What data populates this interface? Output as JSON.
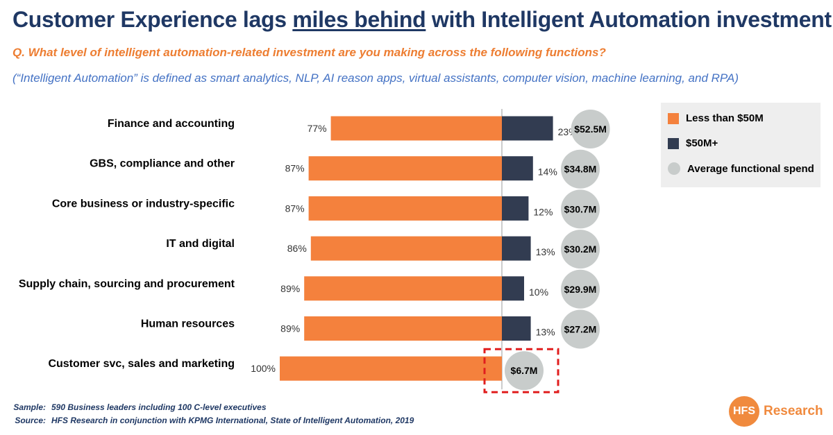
{
  "header": {
    "title_part1": "Customer Experience lags ",
    "title_underlined": "miles behind",
    "title_part2": " with Intelligent Automation investment",
    "question": "Q. What level of intelligent automation-related investment are you making across the following functions?",
    "definition": "(“Intelligent Automation”  is defined as smart analytics, NLP, AI reason apps, virtual assistants, computer vision, machine learning, and RPA)"
  },
  "legend": {
    "items": [
      {
        "label": "Less than $50M",
        "color": "#f4813d",
        "shape": "square"
      },
      {
        "label": "$50M+",
        "color": "#323c51",
        "shape": "square"
      },
      {
        "label": "Average functional spend",
        "color": "#c8cccb",
        "shape": "circle"
      }
    ]
  },
  "chart_data": {
    "type": "bar",
    "orientation": "horizontal-diverging",
    "categories": [
      "Finance and accounting",
      "GBS, compliance and other",
      "Core business or industry-specific",
      "IT and digital",
      "Supply chain, sourcing and procurement",
      "Human resources",
      "Customer svc, sales and marketing"
    ],
    "series": [
      {
        "name": "Less than $50M",
        "color": "#f4813d",
        "values": [
          77,
          87,
          87,
          86,
          89,
          89,
          100
        ],
        "labels": [
          "77%",
          "87%",
          "87%",
          "86%",
          "89%",
          "89%",
          "100%"
        ]
      },
      {
        "name": "$50M+",
        "color": "#323c51",
        "values": [
          23,
          14,
          12,
          13,
          10,
          13,
          0
        ],
        "labels": [
          "23%",
          "14%",
          "12%",
          "13%",
          "10%",
          "13%",
          ""
        ]
      }
    ],
    "average_spend": {
      "name": "Average functional spend",
      "color": "#c8cccb",
      "values": [
        52.5,
        34.8,
        30.7,
        30.2,
        29.9,
        27.2,
        6.7
      ],
      "labels": [
        "$52.5M",
        "$34.8M",
        "$30.7M",
        "$30.2M",
        "$29.9M",
        "$27.2M",
        "$6.7M"
      ]
    },
    "highlight_category": "Customer svc, sales and marketing",
    "highlight_color": "#e01e1e",
    "unit": "%"
  },
  "footer": {
    "sample_key": "Sample:",
    "sample_text": "590 Business leaders including 100 C-level executives",
    "source_key": "Source:",
    "source_text": "HFS Research in conjunction with KPMG International, State of Intelligent Automation, 2019"
  },
  "logo": {
    "badge": "HFS",
    "word": "Research"
  }
}
